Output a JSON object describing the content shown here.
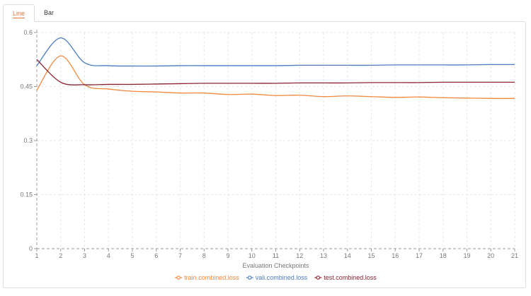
{
  "tabs": [
    {
      "label": "Line",
      "active": true,
      "color": "#e8743b"
    },
    {
      "label": "Bar",
      "active": false,
      "color": "#333333"
    }
  ],
  "chart_data": {
    "type": "line",
    "xlabel": "Evaluation Checkpoints",
    "ylabel": "",
    "x": [
      1,
      2,
      3,
      4,
      5,
      6,
      7,
      8,
      9,
      10,
      11,
      12,
      13,
      14,
      15,
      16,
      17,
      18,
      19,
      20,
      21
    ],
    "xlim": [
      1,
      21
    ],
    "ylim": [
      0,
      0.6
    ],
    "yticks": [
      0,
      0.15,
      0.3,
      0.45,
      0.6
    ],
    "ytick_labels": [
      "0",
      "0.15",
      "0.3",
      "0.45",
      "0.6"
    ],
    "grid": true,
    "legend_position": "bottom-center",
    "series": [
      {
        "name": "train.combined.loss",
        "color": "#f0883e",
        "values": [
          0.44,
          0.535,
          0.455,
          0.443,
          0.437,
          0.435,
          0.432,
          0.432,
          0.428,
          0.429,
          0.425,
          0.426,
          0.422,
          0.424,
          0.422,
          0.42,
          0.421,
          0.419,
          0.418,
          0.417,
          0.417
        ]
      },
      {
        "name": "vali.combined.loss",
        "color": "#4a7bbf",
        "values": [
          0.508,
          0.585,
          0.516,
          0.508,
          0.507,
          0.507,
          0.508,
          0.508,
          0.508,
          0.508,
          0.508,
          0.509,
          0.509,
          0.509,
          0.509,
          0.51,
          0.51,
          0.51,
          0.51,
          0.511,
          0.511
        ]
      },
      {
        "name": "test.combined.loss",
        "color": "#8b2332",
        "values": [
          0.525,
          0.462,
          0.455,
          0.456,
          0.456,
          0.457,
          0.458,
          0.459,
          0.459,
          0.459,
          0.459,
          0.46,
          0.46,
          0.46,
          0.461,
          0.461,
          0.461,
          0.462,
          0.462,
          0.462,
          0.462
        ]
      }
    ]
  }
}
